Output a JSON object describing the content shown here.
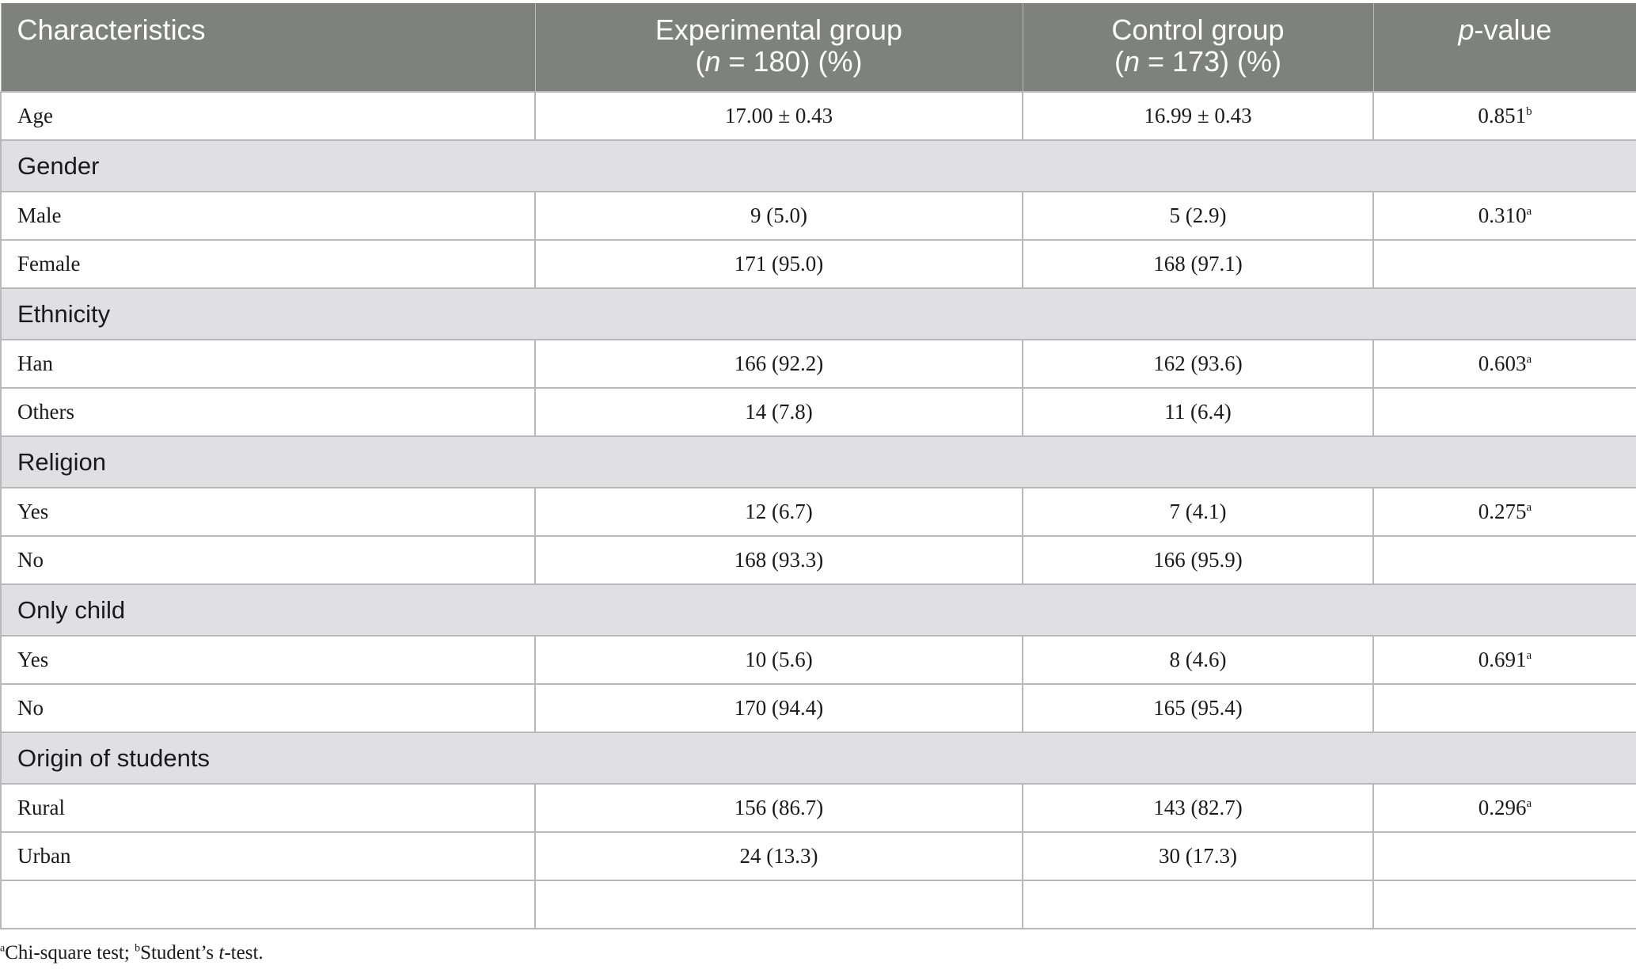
{
  "header": {
    "characteristics": "Characteristics",
    "experimental_line1": "Experimental group",
    "experimental_line2": "(n = 180) (%)",
    "control_line1": "Control group",
    "control_line2": "(n = 173) (%)",
    "pvalue": "p-value"
  },
  "rows": [
    {
      "label": "Age",
      "exp": "17.00 ± 0.43",
      "ctrl": "16.99 ± 0.43",
      "p": "0.851",
      "sup": "b"
    },
    {
      "section": "Gender"
    },
    {
      "label": "Male",
      "exp": "9 (5.0)",
      "ctrl": "5 (2.9)",
      "p": "0.310",
      "sup": "a"
    },
    {
      "label": "Female",
      "exp": "171 (95.0)",
      "ctrl": "168 (97.1)",
      "p": "",
      "sup": ""
    },
    {
      "section": "Ethnicity"
    },
    {
      "label": "Han",
      "exp": "166 (92.2)",
      "ctrl": "162 (93.6)",
      "p": "0.603",
      "sup": "a"
    },
    {
      "label": "Others",
      "exp": "14 (7.8)",
      "ctrl": "11 (6.4)",
      "p": "",
      "sup": ""
    },
    {
      "section": "Religion"
    },
    {
      "label": "Yes",
      "exp": "12 (6.7)",
      "ctrl": "7 (4.1)",
      "p": "0.275",
      "sup": "a"
    },
    {
      "label": "No",
      "exp": "168 (93.3)",
      "ctrl": "166 (95.9)",
      "p": "",
      "sup": ""
    },
    {
      "section": "Only child"
    },
    {
      "label": "Yes",
      "exp": "10 (5.6)",
      "ctrl": "8 (4.6)",
      "p": "0.691",
      "sup": "a"
    },
    {
      "label": "No",
      "exp": "170 (94.4)",
      "ctrl": "165 (95.4)",
      "p": "",
      "sup": ""
    },
    {
      "section": "Origin of students"
    },
    {
      "label": "Rural",
      "exp": "156 (86.7)",
      "ctrl": "143 (82.7)",
      "p": "0.296",
      "sup": "a"
    },
    {
      "label": "Urban",
      "exp": "24 (13.3)",
      "ctrl": "30 (17.3)",
      "p": "",
      "sup": ""
    }
  ],
  "footnote": {
    "a_mark": "a",
    "a_text": "Chi-square test; ",
    "b_mark": "b",
    "b_text_pre": "Student’s ",
    "b_text_italic": "t",
    "b_text_post": "-test."
  }
}
